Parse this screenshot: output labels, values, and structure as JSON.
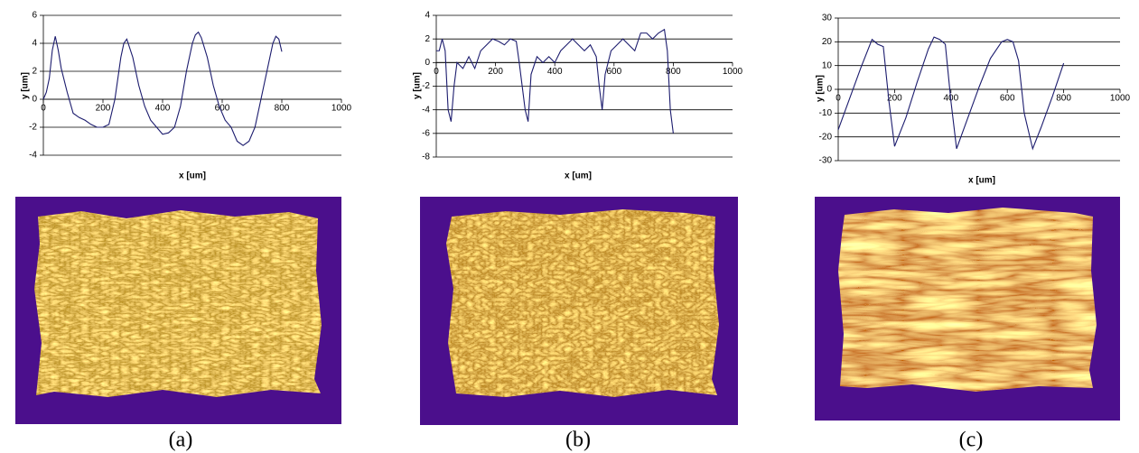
{
  "chart_data": [
    {
      "type": "line",
      "x_label": "x [um]",
      "y_label": "y [um]",
      "x": [
        0,
        10,
        20,
        30,
        40,
        50,
        60,
        80,
        100,
        120,
        140,
        160,
        180,
        200,
        220,
        240,
        260,
        270,
        280,
        300,
        320,
        340,
        360,
        380,
        400,
        420,
        440,
        460,
        480,
        500,
        510,
        520,
        530,
        550,
        570,
        590,
        610,
        630,
        650,
        670,
        690,
        710,
        730,
        750,
        770,
        780,
        790,
        800
      ],
      "series": [
        {
          "color": "#1c1c6e",
          "values": [
            0,
            0.5,
            1.5,
            3.5,
            4.5,
            3.5,
            2.2,
            0.5,
            -1,
            -1.3,
            -1.5,
            -1.8,
            -2,
            -2,
            -1.8,
            0,
            3,
            4,
            4.3,
            3,
            1,
            -0.5,
            -1.5,
            -2,
            -2.5,
            -2.4,
            -2,
            -0.5,
            2,
            4,
            4.6,
            4.8,
            4.4,
            3,
            1,
            -0.5,
            -1.5,
            -2,
            -3,
            -3.3,
            -3,
            -2,
            0,
            2,
            4,
            4.5,
            4.3,
            3.4
          ]
        }
      ],
      "xlim": [
        0,
        1000
      ],
      "xticks": [
        0,
        200,
        400,
        600,
        800,
        1000
      ],
      "ylim": [
        -4,
        6
      ],
      "yticks": [
        -4,
        -2,
        0,
        2,
        4,
        6
      ],
      "grid": true
    },
    {
      "type": "line",
      "x_label": "x [um]",
      "y_label": "y [um]",
      "x": [
        0,
        10,
        20,
        30,
        40,
        50,
        60,
        70,
        90,
        110,
        130,
        150,
        170,
        190,
        210,
        230,
        250,
        270,
        280,
        290,
        300,
        310,
        320,
        340,
        360,
        380,
        400,
        420,
        440,
        460,
        480,
        500,
        520,
        540,
        550,
        560,
        570,
        590,
        610,
        630,
        650,
        670,
        690,
        710,
        730,
        750,
        770,
        780,
        790,
        800
      ],
      "series": [
        {
          "color": "#1c1c6e",
          "values": [
            1,
            1,
            2,
            1,
            -4,
            -5,
            -2,
            0,
            -0.5,
            0.5,
            -0.5,
            1,
            1.5,
            2,
            1.8,
            1.5,
            2,
            1.8,
            0,
            -2,
            -4,
            -5,
            -1,
            0.5,
            0,
            0.5,
            0,
            1,
            1.5,
            2,
            1.5,
            1,
            1.5,
            0.5,
            -2,
            -4,
            -1,
            1,
            1.5,
            2,
            1.5,
            1,
            2.5,
            2.5,
            2,
            2.5,
            2.8,
            1,
            -4,
            -6
          ]
        }
      ],
      "xlim": [
        0,
        1000
      ],
      "xticks": [
        0,
        200,
        400,
        600,
        800,
        1000
      ],
      "ylim": [
        -8,
        4
      ],
      "yticks": [
        -8,
        -6,
        -4,
        -2,
        0,
        2,
        4
      ],
      "grid": true
    },
    {
      "type": "line",
      "x_label": "x [um]",
      "y_label": "y [um]",
      "x": [
        0,
        40,
        80,
        120,
        140,
        160,
        180,
        200,
        240,
        280,
        320,
        340,
        360,
        380,
        400,
        420,
        460,
        500,
        540,
        580,
        600,
        620,
        640,
        660,
        690,
        720,
        760,
        800
      ],
      "series": [
        {
          "color": "#1c1c6e",
          "values": [
            -17,
            -4,
            9,
            21,
            19,
            18,
            -5,
            -24,
            -12,
            3,
            17,
            22,
            21,
            19,
            -5,
            -25,
            -12,
            1,
            13,
            20,
            21,
            20,
            12,
            -10,
            -25,
            -16,
            -3,
            11
          ]
        }
      ],
      "xlim": [
        0,
        1000
      ],
      "xticks": [
        0,
        200,
        400,
        600,
        800,
        1000
      ],
      "ylim": [
        -30,
        30
      ],
      "yticks": [
        -30,
        -20,
        -10,
        0,
        10,
        20,
        30
      ],
      "grid": true
    }
  ],
  "captions": [
    "(a)",
    "(b)",
    "(c)"
  ]
}
